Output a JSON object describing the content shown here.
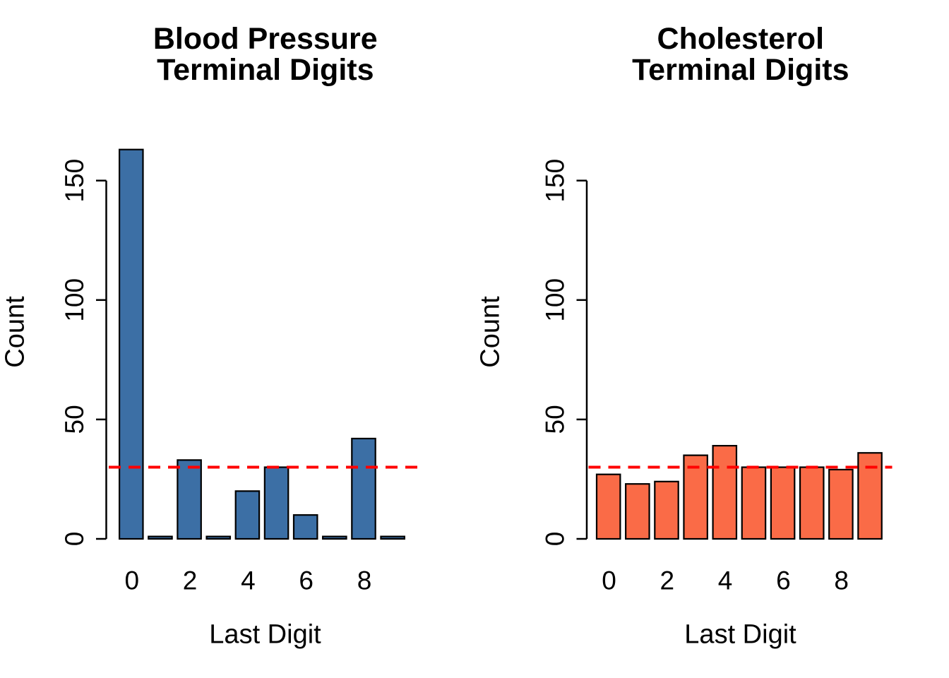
{
  "chart_data": [
    {
      "type": "bar",
      "title_line1": "Blood Pressure",
      "title_line2": "Terminal Digits",
      "xlabel": "Last Digit",
      "ylabel": "Count",
      "categories": [
        0,
        1,
        2,
        3,
        4,
        5,
        6,
        7,
        8,
        9
      ],
      "values": [
        163,
        1,
        33,
        1,
        20,
        30,
        10,
        1,
        42,
        1
      ],
      "x_tick_digits": [
        0,
        2,
        4,
        6,
        8
      ],
      "x_tick_labels": [
        "0",
        "2",
        "4",
        "6",
        "8"
      ],
      "y_ticks": [
        0,
        50,
        100,
        150
      ],
      "y_tick_labels": [
        "0",
        "50",
        "100",
        "150"
      ],
      "ylim": [
        0,
        170
      ],
      "bar_color": "#3C6FA5",
      "bar_edge_color": "#000000",
      "reference_line": {
        "value": 30,
        "color": "#FF0000",
        "style": "dashed"
      },
      "grid": false,
      "legend": null
    },
    {
      "type": "bar",
      "title_line1": "Cholesterol",
      "title_line2": "Terminal Digits",
      "xlabel": "Last Digit",
      "ylabel": "Count",
      "categories": [
        0,
        1,
        2,
        3,
        4,
        5,
        6,
        7,
        8,
        9
      ],
      "values": [
        27,
        23,
        24,
        35,
        39,
        30,
        30,
        30,
        29,
        36
      ],
      "x_tick_digits": [
        0,
        2,
        4,
        6,
        8
      ],
      "x_tick_labels": [
        "0",
        "2",
        "4",
        "6",
        "8"
      ],
      "y_ticks": [
        0,
        50,
        100,
        150
      ],
      "y_tick_labels": [
        "0",
        "50",
        "100",
        "150"
      ],
      "ylim": [
        0,
        170
      ],
      "bar_color": "#FA6B47",
      "bar_edge_color": "#000000",
      "reference_line": {
        "value": 30,
        "color": "#FF0000",
        "style": "dashed"
      },
      "grid": false,
      "legend": null
    }
  ]
}
